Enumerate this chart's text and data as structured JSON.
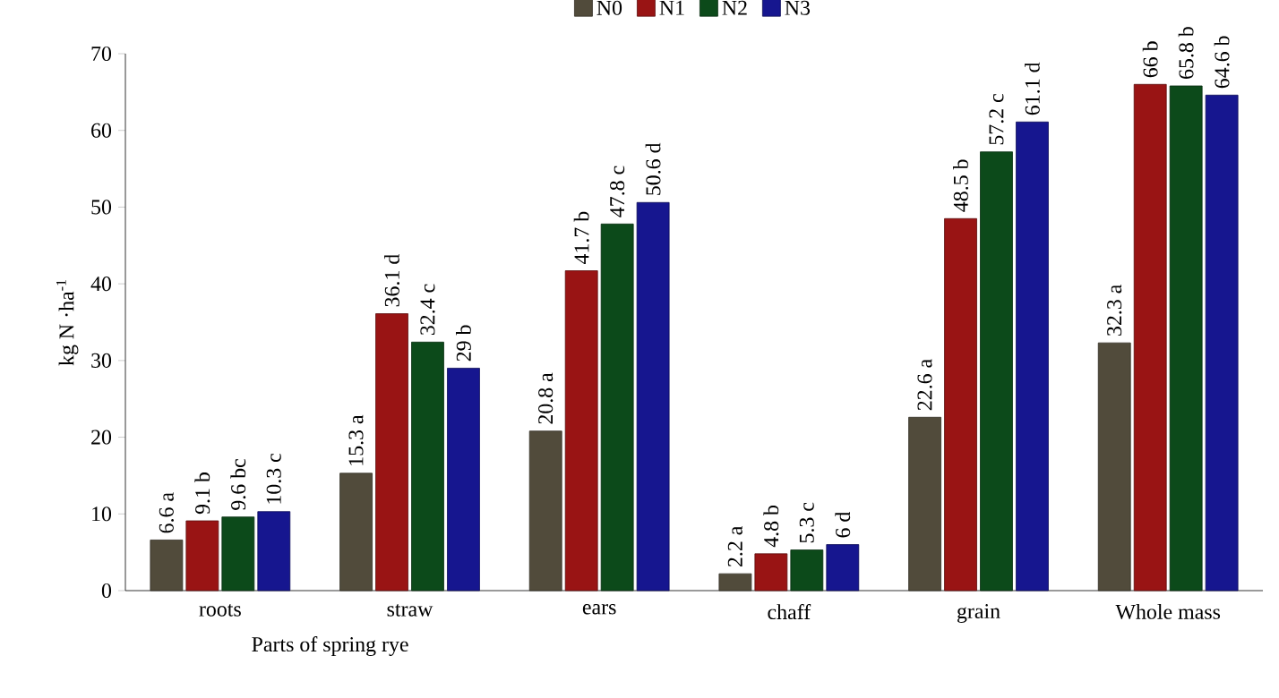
{
  "chart_data": {
    "type": "bar",
    "ylabel": "kg N ·ha$^{-1}$",
    "xlabel": "Parts of  spring rye",
    "categories": [
      "roots",
      "straw",
      "ears",
      "chaff",
      "grain",
      "Whole mass"
    ],
    "series": [
      {
        "name": "N0",
        "color": "#514b3b",
        "values": [
          6.6,
          15.3,
          20.8,
          2.2,
          22.6,
          32.3
        ],
        "value_labels": [
          "6.6 a",
          "15.3 a",
          "20.8 a",
          "2.2 a",
          "22.6 a",
          "32.3 a"
        ]
      },
      {
        "name": "N1",
        "color": "#991414",
        "values": [
          9.1,
          36.1,
          41.7,
          4.8,
          48.5,
          66
        ],
        "value_labels": [
          "9.1 b",
          "36.1 d",
          "41.7 b",
          "4.8 b",
          "48.5 b",
          "66 b"
        ]
      },
      {
        "name": "N2",
        "color": "#0c4a1a",
        "values": [
          9.6,
          32.4,
          47.8,
          5.3,
          57.2,
          65.8
        ],
        "value_labels": [
          "9.6 bc",
          "32.4 c",
          "47.8 c",
          "5.3 c",
          "57.2 c",
          "65.8 b"
        ]
      },
      {
        "name": "N3",
        "color": "#16168f",
        "values": [
          10.3,
          29,
          50.6,
          6,
          61.1,
          64.6
        ],
        "value_labels": [
          "10.3 c",
          "29 b",
          "50.6 d",
          "6 d",
          "61.1 d",
          "64.6 b"
        ]
      }
    ],
    "ylim": [
      0,
      70
    ],
    "yticks": [
      0,
      10,
      20,
      30,
      40,
      50,
      60,
      70
    ],
    "legend": "top",
    "grid": false
  }
}
